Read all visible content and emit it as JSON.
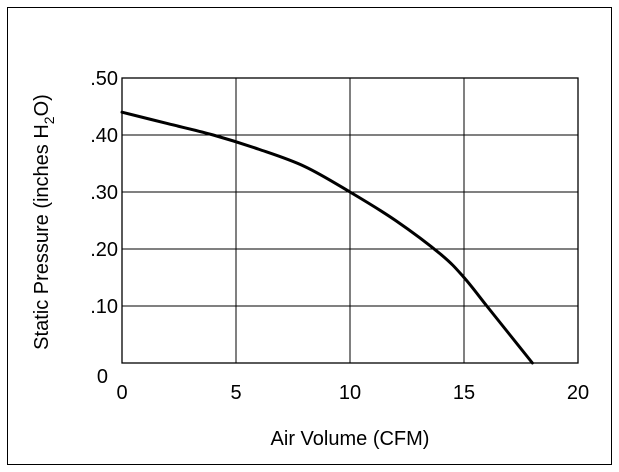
{
  "chart_data": {
    "type": "line",
    "title": "",
    "xlabel": "Air Volume (CFM)",
    "ylabel": "Static Pressure (inches H2O)",
    "ylabel_parts": {
      "main": "Static Pressure (inches H",
      "sub": "2",
      "tail": "O)"
    },
    "xlim": [
      0,
      20
    ],
    "ylim": [
      0,
      0.5
    ],
    "grid": true,
    "x_ticks": [
      0,
      5,
      10,
      15,
      20
    ],
    "x_tick_labels": [
      "0",
      "5",
      "10",
      "15",
      "20"
    ],
    "y_ticks": [
      0,
      0.1,
      0.2,
      0.3,
      0.4,
      0.5
    ],
    "y_tick_labels": [
      "0",
      ".10",
      ".20",
      ".30",
      ".40",
      ".50"
    ],
    "series": [
      {
        "color": "#000000",
        "x": [
          0,
          2,
          4,
          6,
          8,
          10,
          12,
          14,
          15,
          16,
          17,
          18
        ],
        "y": [
          0.44,
          0.42,
          0.4,
          0.375,
          0.345,
          0.3,
          0.25,
          0.19,
          0.15,
          0.1,
          0.05,
          0
        ]
      }
    ]
  }
}
